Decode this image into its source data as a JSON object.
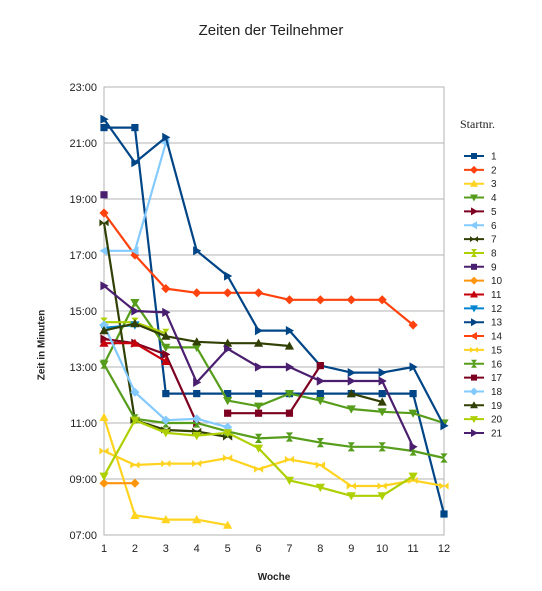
{
  "chart_data": {
    "type": "line",
    "title": "Zeiten der Teilnehmer",
    "xlabel": "Woche",
    "ylabel": "Zeit in Minuten",
    "legend_title": "Startnr.",
    "legend_position": "right",
    "x": [
      1,
      2,
      3,
      4,
      5,
      6,
      7,
      8,
      9,
      10,
      11,
      12
    ],
    "ylim": [
      7,
      23
    ],
    "yticks": [
      "07:00",
      "09:00",
      "11:00",
      "13:00",
      "15:00",
      "17:00",
      "19:00",
      "21:00",
      "23:00"
    ],
    "grid": "horizontal",
    "series": [
      {
        "name": "1",
        "color": "#004586",
        "marker": "square",
        "values": [
          21.55,
          21.55,
          12.05,
          12.05,
          12.05,
          12.05,
          12.05,
          12.05,
          12.05,
          12.05,
          12.05,
          7.75
        ]
      },
      {
        "name": "2",
        "color": "#ff420e",
        "marker": "diamond",
        "values": [
          18.5,
          17.0,
          15.8,
          15.65,
          15.65,
          15.65,
          15.4,
          15.4,
          15.4,
          15.4,
          14.5,
          null
        ]
      },
      {
        "name": "3",
        "color": "#ffd320",
        "marker": "triangle-up",
        "values": [
          11.2,
          7.7,
          7.55,
          7.55,
          7.35,
          null,
          null,
          null,
          null,
          null,
          null,
          null
        ]
      },
      {
        "name": "4",
        "color": "#579d1c",
        "marker": "triangle-down",
        "values": [
          13.1,
          15.3,
          13.7,
          13.7,
          11.8,
          11.6,
          12.05,
          11.8,
          11.5,
          11.4,
          11.35,
          11.0
        ]
      },
      {
        "name": "5",
        "color": "#7e0021",
        "marker": "triangle-right",
        "values": [
          14.0,
          13.85,
          13.45,
          11.0,
          null,
          null,
          null,
          null,
          null,
          null,
          null,
          null
        ]
      },
      {
        "name": "6",
        "color": "#83caff",
        "marker": "triangle-left",
        "values": [
          17.15,
          17.15,
          21.0,
          null,
          null,
          null,
          null,
          null,
          null,
          null,
          null,
          null
        ]
      },
      {
        "name": "7",
        "color": "#314004",
        "marker": "bowtie",
        "values": [
          18.15,
          11.1,
          10.75,
          10.7,
          10.5,
          null,
          null,
          null,
          null,
          null,
          null,
          null
        ]
      },
      {
        "name": "8",
        "color": "#aecf00",
        "marker": "hourglass",
        "values": [
          14.6,
          14.6,
          14.2,
          null,
          null,
          null,
          null,
          null,
          null,
          null,
          null,
          null
        ]
      },
      {
        "name": "9",
        "color": "#4b1f6f",
        "marker": "square",
        "values": [
          19.15,
          null,
          null,
          null,
          null,
          null,
          null,
          null,
          null,
          null,
          null,
          null
        ]
      },
      {
        "name": "10",
        "color": "#ff950e",
        "marker": "diamond",
        "values": [
          8.85,
          8.85,
          null,
          null,
          null,
          null,
          null,
          null,
          null,
          null,
          null,
          null
        ]
      },
      {
        "name": "11",
        "color": "#c5000b",
        "marker": "triangle-up",
        "values": [
          13.85,
          13.85,
          13.2,
          null,
          null,
          null,
          null,
          null,
          null,
          null,
          null,
          null
        ]
      },
      {
        "name": "12",
        "color": "#0084d1",
        "marker": "triangle-down",
        "values": [
          14.4,
          14.5,
          null,
          null,
          null,
          null,
          null,
          null,
          null,
          null,
          null,
          null
        ]
      },
      {
        "name": "13",
        "color": "#004586",
        "marker": "triangle-right",
        "values": [
          21.85,
          20.3,
          21.2,
          17.15,
          16.25,
          14.3,
          14.3,
          13.05,
          12.8,
          12.8,
          13.0,
          10.9
        ]
      },
      {
        "name": "14",
        "color": "#ff420e",
        "marker": "triangle-left",
        "values": [
          null,
          null,
          null,
          null,
          null,
          null,
          null,
          null,
          null,
          null,
          null,
          null
        ]
      },
      {
        "name": "15",
        "color": "#ffd320",
        "marker": "bowtie",
        "values": [
          10.0,
          9.5,
          9.55,
          9.55,
          9.75,
          9.35,
          9.7,
          9.5,
          8.75,
          8.75,
          8.95,
          8.75
        ]
      },
      {
        "name": "16",
        "color": "#579d1c",
        "marker": "hourglass",
        "values": [
          13.1,
          11.15,
          11.0,
          11.0,
          10.7,
          10.45,
          10.5,
          10.3,
          10.15,
          10.15,
          10.0,
          9.75
        ]
      },
      {
        "name": "17",
        "color": "#7e0021",
        "marker": "square",
        "values": [
          null,
          null,
          null,
          null,
          11.35,
          11.35,
          11.35,
          13.05,
          null,
          null,
          null,
          null
        ]
      },
      {
        "name": "18",
        "color": "#83caff",
        "marker": "diamond",
        "values": [
          14.5,
          12.1,
          11.1,
          11.15,
          10.85,
          null,
          null,
          null,
          null,
          null,
          null,
          null
        ]
      },
      {
        "name": "19",
        "color": "#314004",
        "marker": "triangle-up",
        "values": [
          14.3,
          14.55,
          14.1,
          13.9,
          13.85,
          13.85,
          13.75,
          null,
          12.05,
          11.75,
          null,
          null
        ]
      },
      {
        "name": "20",
        "color": "#aecf00",
        "marker": "triangle-down",
        "values": [
          9.1,
          11.1,
          10.65,
          10.55,
          10.65,
          10.1,
          8.95,
          8.7,
          8.4,
          8.4,
          9.1,
          null
        ]
      },
      {
        "name": "21",
        "color": "#4b1f6f",
        "marker": "triangle-right",
        "values": [
          15.9,
          15.0,
          14.95,
          12.45,
          13.65,
          13.0,
          13.0,
          12.5,
          12.5,
          12.5,
          10.15,
          null
        ]
      }
    ]
  }
}
